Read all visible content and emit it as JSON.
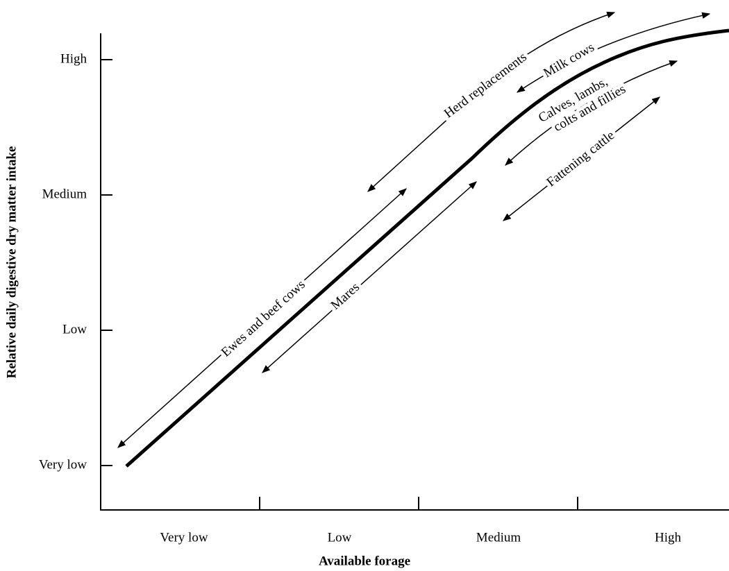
{
  "axes": {
    "y_title": "Relative daily digestive dry matter intake",
    "x_title": "Available forage",
    "y_ticks": [
      "High",
      "Medium",
      "Low",
      "Very low"
    ],
    "x_ticks": [
      "Very low",
      "Low",
      "Medium",
      "High"
    ]
  },
  "annotations": {
    "herd": "Herd replacements",
    "milk": "Milk cows",
    "calves": [
      "Calves, lambs,",
      "colts and fillies"
    ],
    "fattening": "Fattening cattle",
    "ewes": "Ewes and beef cows",
    "mares": "Mares"
  }
}
